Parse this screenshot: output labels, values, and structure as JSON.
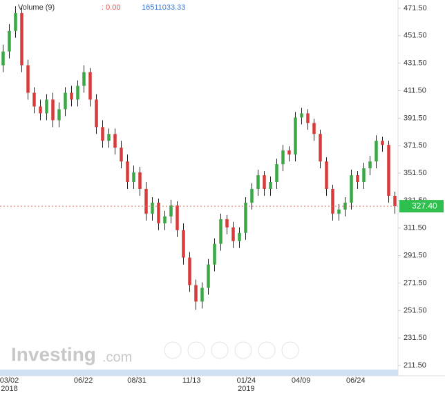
{
  "chart_data": {
    "type": "candlestick",
    "header": {
      "indicator": "Volume (9)",
      "indicator_value": ": 0.00",
      "volume": "16511033.33"
    },
    "watermark": {
      "brand": "Investing",
      "suffix": ".com"
    },
    "up_color": "#3aa845",
    "down_color": "#d93a3a",
    "last_price": {
      "value": 327.4,
      "label": "327.40",
      "color": "#2fbf4f"
    },
    "open": [
      430,
      440,
      455,
      468,
      430,
      410,
      400,
      395,
      405,
      390,
      398,
      410,
      405,
      415,
      425,
      405,
      385,
      375,
      380,
      370,
      360,
      345,
      352,
      340,
      322,
      330,
      315,
      320,
      328,
      310,
      290,
      270,
      258,
      268,
      285,
      300,
      318,
      312,
      302,
      308,
      330,
      340,
      350,
      340,
      345,
      358,
      368,
      365,
      392,
      395,
      388,
      380,
      360,
      340,
      322,
      325,
      330,
      350,
      345,
      355,
      360,
      375,
      372,
      335
    ],
    "high": [
      445,
      460,
      473,
      472,
      434,
      414,
      405,
      409,
      410,
      403,
      414,
      415,
      419,
      430,
      428,
      409,
      390,
      384,
      384,
      375,
      365,
      357,
      356,
      345,
      334,
      333,
      324,
      332,
      331,
      315,
      294,
      274,
      272,
      289,
      304,
      322,
      321,
      316,
      312,
      334,
      344,
      354,
      353,
      349,
      362,
      372,
      371,
      396,
      399,
      398,
      391,
      383,
      363,
      343,
      329,
      334,
      354,
      353,
      359,
      364,
      379,
      378,
      375,
      338
    ],
    "low": [
      425,
      435,
      450,
      425,
      405,
      395,
      390,
      390,
      385,
      385,
      393,
      400,
      400,
      410,
      400,
      380,
      370,
      370,
      365,
      355,
      340,
      340,
      335,
      317,
      317,
      310,
      310,
      315,
      305,
      285,
      265,
      252,
      253,
      263,
      280,
      295,
      307,
      297,
      297,
      303,
      325,
      335,
      335,
      335,
      340,
      353,
      360,
      360,
      387,
      383,
      375,
      355,
      335,
      317,
      317,
      320,
      325,
      340,
      340,
      350,
      355,
      367,
      330,
      322
    ],
    "close": [
      440,
      455,
      468,
      430,
      410,
      400,
      395,
      405,
      390,
      398,
      410,
      405,
      415,
      425,
      405,
      385,
      375,
      380,
      370,
      360,
      345,
      352,
      340,
      322,
      330,
      315,
      320,
      328,
      310,
      290,
      270,
      258,
      268,
      285,
      300,
      318,
      312,
      302,
      308,
      330,
      340,
      350,
      340,
      345,
      358,
      368,
      365,
      392,
      395,
      388,
      380,
      360,
      340,
      322,
      325,
      330,
      350,
      345,
      355,
      360,
      375,
      372,
      335,
      327.4
    ],
    "xlim": [
      -0.5,
      63.5
    ],
    "xticks": [
      {
        "value": 1,
        "label": "03/02"
      },
      {
        "value": 12.9,
        "label": "06/22"
      },
      {
        "value": 21.5,
        "label": "08/31"
      },
      {
        "value": 30.3,
        "label": "11/13"
      },
      {
        "value": 39.1,
        "label": "01/24"
      },
      {
        "value": 47.9,
        "label": "04/09"
      },
      {
        "value": 56.7,
        "label": "06/24"
      }
    ],
    "year_labels": [
      {
        "value": 1,
        "label": "2018"
      },
      {
        "value": 39.1,
        "label": "2019"
      }
    ],
    "ylim": [
      204,
      477.5
    ],
    "yticks": [
      {
        "value": 471.5,
        "label": "471.50"
      },
      {
        "value": 451.5,
        "label": "451.50"
      },
      {
        "value": 431.5,
        "label": "431.50"
      },
      {
        "value": 411.5,
        "label": "411.50"
      },
      {
        "value": 391.5,
        "label": "391.50"
      },
      {
        "value": 371.5,
        "label": "371.50"
      },
      {
        "value": 351.5,
        "label": "351.50"
      },
      {
        "value": 331.5,
        "label": "331.50"
      },
      {
        "value": 311.5,
        "label": "311.50"
      },
      {
        "value": 291.5,
        "label": "291.50"
      },
      {
        "value": 271.5,
        "label": "271.50"
      },
      {
        "value": 251.5,
        "label": "251.50"
      },
      {
        "value": 231.5,
        "label": "231.50"
      },
      {
        "value": 211.5,
        "label": "211.50"
      }
    ]
  }
}
